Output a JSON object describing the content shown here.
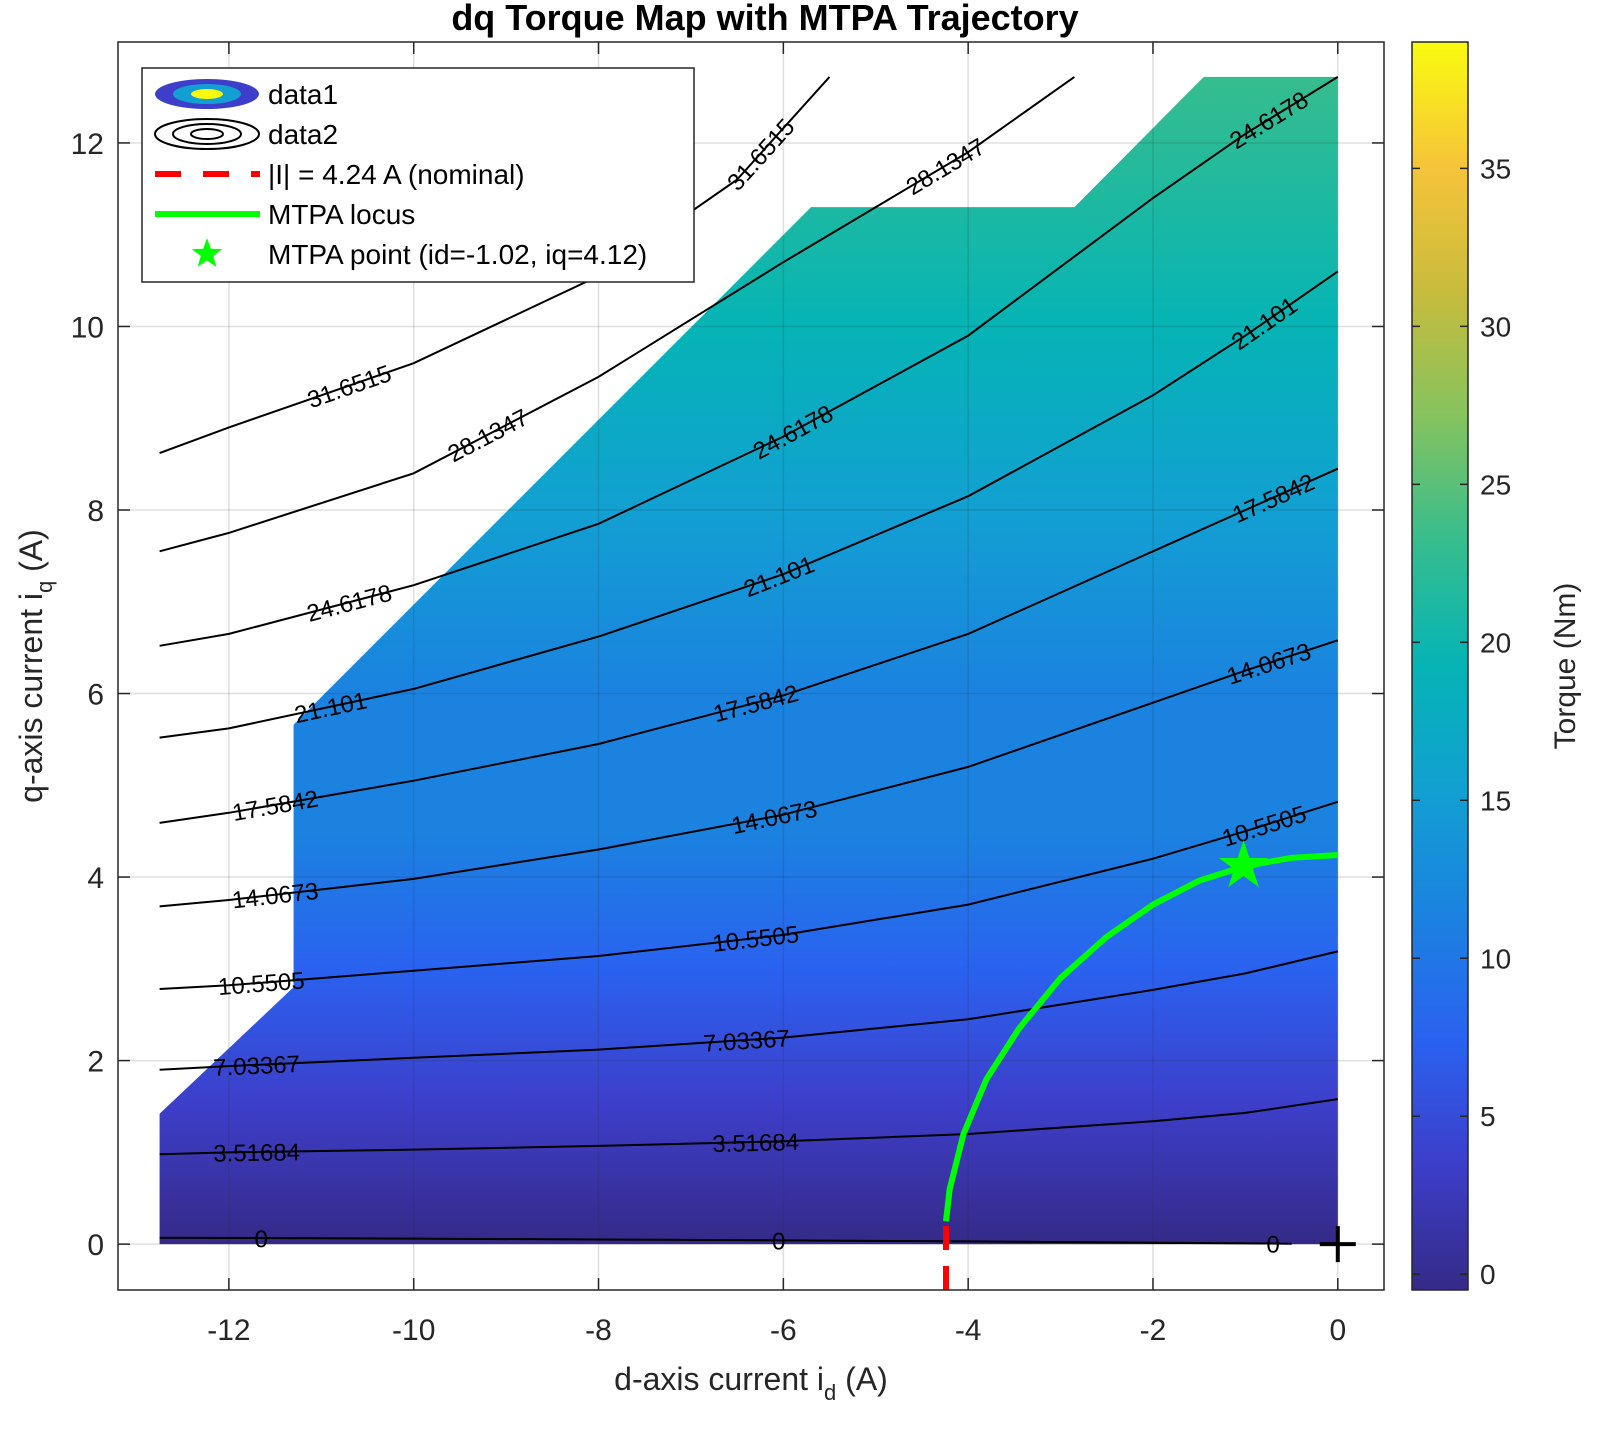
{
  "chart_data": {
    "type": "contour",
    "title": "dq Torque Map with MTPA Trajectory",
    "xlabel": "d-axis current i",
    "xlabel_sub": "d",
    "xlabel_unit": " (A)",
    "ylabel": "q-axis current i",
    "ylabel_sub": "q",
    "ylabel_unit": " (A)",
    "xlim": [
      -13.2,
      0.5
    ],
    "ylim": [
      -0.5,
      13.1
    ],
    "x_ticks": [
      -12,
      -10,
      -8,
      -6,
      -4,
      -2,
      0
    ],
    "y_ticks": [
      0,
      2,
      4,
      6,
      8,
      10,
      12
    ],
    "grid": true,
    "legend_position": "top-left",
    "legend": [
      {
        "label": "data1",
        "type": "filled-contour"
      },
      {
        "label": "data2",
        "type": "contour-lines"
      },
      {
        "label": "|I| = 4.24 A (nominal)",
        "type": "dashed-line",
        "color": "#ff0000"
      },
      {
        "label": "MTPA locus",
        "type": "line",
        "color": "#00ff00"
      },
      {
        "label": "MTPA point (id=-1.02, iq=4.12)",
        "type": "marker",
        "color": "#00ff00"
      }
    ],
    "colorbar": {
      "label": "Torque (Nm)",
      "range": [
        -0.5,
        39
      ],
      "ticks": [
        0,
        5,
        10,
        15,
        20,
        25,
        30,
        35
      ]
    },
    "region_outline": [
      [
        -12.75,
        0
      ],
      [
        -12.75,
        1.42
      ],
      [
        -11.3,
        2.8
      ],
      [
        -11.3,
        5.66
      ],
      [
        -5.7,
        11.3
      ],
      [
        -2.85,
        11.3
      ],
      [
        -1.45,
        12.72
      ],
      [
        0,
        12.72
      ],
      [
        0,
        0
      ]
    ],
    "contours": [
      {
        "label": "0",
        "level": 0,
        "points": [
          [
            -12.75,
            0.07
          ],
          [
            -10,
            0.06
          ],
          [
            -8,
            0.05
          ],
          [
            -6,
            0.04
          ],
          [
            -4,
            0.03
          ],
          [
            -2,
            0.015
          ],
          [
            -0.5,
            0.005
          ]
        ],
        "label_positions": [
          [
            -11.65,
            0.06
          ],
          [
            -6.05,
            0.04
          ],
          [
            -0.7,
            0.0
          ]
        ]
      },
      {
        "label": "3.51684",
        "level": 3.51684,
        "points": [
          [
            -12.75,
            0.98
          ],
          [
            -12,
            1.0
          ],
          [
            -10,
            1.03
          ],
          [
            -8,
            1.07
          ],
          [
            -6,
            1.12
          ],
          [
            -4,
            1.2
          ],
          [
            -2,
            1.34
          ],
          [
            -1,
            1.43
          ],
          [
            0,
            1.58
          ]
        ],
        "label_positions": [
          [
            -11.7,
            0.99
          ],
          [
            -6.3,
            1.14
          ]
        ]
      },
      {
        "label": "7.03367",
        "level": 7.03367,
        "points": [
          [
            -12.75,
            1.9
          ],
          [
            -12,
            1.94
          ],
          [
            -10,
            2.03
          ],
          [
            -8,
            2.12
          ],
          [
            -6,
            2.25
          ],
          [
            -4,
            2.45
          ],
          [
            -2,
            2.77
          ],
          [
            -1,
            2.95
          ],
          [
            0,
            3.19
          ]
        ],
        "label_positions": [
          [
            -11.7,
            1.94
          ],
          [
            -6.4,
            2.24
          ]
        ]
      },
      {
        "label": "10.5505",
        "level": 10.5505,
        "points": [
          [
            -12.75,
            2.78
          ],
          [
            -12,
            2.82
          ],
          [
            -10,
            2.98
          ],
          [
            -8,
            3.14
          ],
          [
            -6,
            3.37
          ],
          [
            -4,
            3.7
          ],
          [
            -2,
            4.2
          ],
          [
            -1,
            4.5
          ],
          [
            0,
            4.82
          ]
        ],
        "label_positions": [
          [
            -11.65,
            2.85
          ],
          [
            -6.3,
            3.4
          ],
          [
            -0.8,
            4.6
          ]
        ]
      },
      {
        "label": "14.0673",
        "level": 14.0673,
        "points": [
          [
            -12.75,
            3.68
          ],
          [
            -12,
            3.75
          ],
          [
            -10,
            3.98
          ],
          [
            -8,
            4.3
          ],
          [
            -6,
            4.68
          ],
          [
            -4,
            5.2
          ],
          [
            -2,
            5.9
          ],
          [
            -1,
            6.25
          ],
          [
            0,
            6.58
          ]
        ],
        "label_positions": [
          [
            -11.5,
            3.8
          ],
          [
            -6.1,
            4.7
          ],
          [
            -0.75,
            6.3
          ]
        ]
      },
      {
        "label": "17.5842",
        "level": 17.5842,
        "points": [
          [
            -12.75,
            4.59
          ],
          [
            -12,
            4.7
          ],
          [
            -10,
            5.05
          ],
          [
            -8,
            5.45
          ],
          [
            -6,
            5.98
          ],
          [
            -4,
            6.65
          ],
          [
            -2,
            7.55
          ],
          [
            -1,
            8.0
          ],
          [
            0,
            8.45
          ]
        ],
        "label_positions": [
          [
            -11.5,
            4.75
          ],
          [
            -6.3,
            5.85
          ],
          [
            -0.7,
            7.95
          ]
        ]
      },
      {
        "label": "21.101",
        "level": 21.101,
        "points": [
          [
            -12.75,
            5.52
          ],
          [
            -12,
            5.62
          ],
          [
            -10,
            6.05
          ],
          [
            -8,
            6.62
          ],
          [
            -6,
            7.3
          ],
          [
            -4,
            8.15
          ],
          [
            -2,
            9.25
          ],
          [
            -1,
            9.9
          ],
          [
            0,
            10.6
          ]
        ],
        "label_positions": [
          [
            -10.9,
            5.78
          ],
          [
            -6.05,
            7.19
          ],
          [
            -0.8,
            9.65
          ]
        ]
      },
      {
        "label": "24.6178",
        "level": 24.6178,
        "points": [
          [
            -12.75,
            6.52
          ],
          [
            -12,
            6.65
          ],
          [
            -10,
            7.18
          ],
          [
            -8,
            7.85
          ],
          [
            -6,
            8.8
          ],
          [
            -4,
            9.9
          ],
          [
            -2,
            11.4
          ],
          [
            -1,
            12.1
          ],
          [
            0,
            12.72
          ]
        ],
        "label_positions": [
          [
            -10.7,
            7.0
          ],
          [
            -5.9,
            8.71
          ],
          [
            -0.75,
            11.85
          ]
        ]
      },
      {
        "label": "28.1347",
        "level": 28.1347,
        "points": [
          [
            -12.75,
            7.55
          ],
          [
            -12,
            7.75
          ],
          [
            -10,
            8.4
          ],
          [
            -8,
            9.45
          ],
          [
            -6,
            10.7
          ],
          [
            -4,
            11.9
          ],
          [
            -2.85,
            12.72
          ]
        ],
        "label_positions": [
          [
            -9.2,
            8.68
          ],
          [
            -4.25,
            11.72
          ]
        ]
      },
      {
        "label": "31.6515",
        "level": 31.6515,
        "points": [
          [
            -12.75,
            8.62
          ],
          [
            -12,
            8.9
          ],
          [
            -10,
            9.6
          ],
          [
            -8,
            10.55
          ],
          [
            -6.5,
            11.6
          ],
          [
            -5.5,
            12.72
          ]
        ],
        "label_positions": [
          [
            -10.7,
            9.36
          ],
          [
            -6.25,
            11.85
          ]
        ]
      }
    ],
    "mtpa_locus": [
      [
        -4.24,
        0.25
      ],
      [
        -4.2,
        0.6
      ],
      [
        -4.05,
        1.2
      ],
      [
        -3.8,
        1.8
      ],
      [
        -3.45,
        2.35
      ],
      [
        -3.0,
        2.9
      ],
      [
        -2.5,
        3.35
      ],
      [
        -2.0,
        3.7
      ],
      [
        -1.5,
        3.96
      ],
      [
        -1.0,
        4.12
      ],
      [
        -0.5,
        4.21
      ],
      [
        0,
        4.24
      ]
    ],
    "nominal_circle_segment": [
      [
        -4.24,
        -0.5
      ],
      [
        -4.24,
        0.35
      ]
    ],
    "mtpa_point": {
      "id": -1.02,
      "iq": 4.12
    },
    "origin_marker": {
      "id": 0,
      "iq": 0,
      "symbol": "+"
    }
  }
}
